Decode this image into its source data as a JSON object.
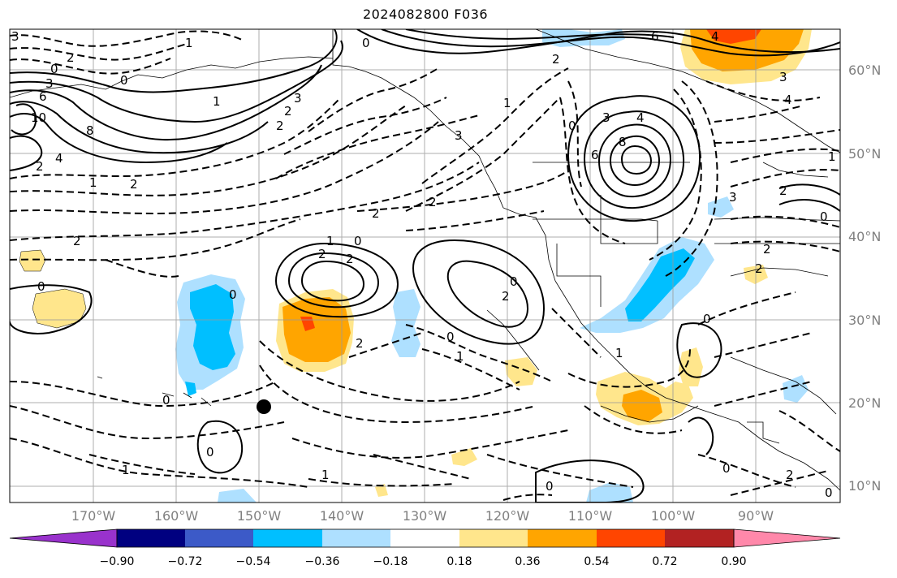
{
  "title": "2024082800 F036",
  "lat_labels": [
    "60°N",
    "50°N",
    "40°N",
    "30°N",
    "20°N",
    "10°N"
  ],
  "lon_labels": [
    "170°W",
    "160°W",
    "150°W",
    "140°W",
    "130°W",
    "120°W",
    "110°W",
    "100°W",
    "90°W"
  ],
  "contour_labels": [
    "3",
    "2",
    "0",
    "1",
    "1",
    "0",
    "2",
    "6",
    "3",
    "4",
    "2",
    "2",
    "3",
    "6",
    "4",
    "8",
    "0",
    "3",
    "0",
    "6",
    "10",
    "8",
    "4",
    "3",
    "1",
    "2",
    "1",
    "2",
    "2",
    "2",
    "2",
    "1",
    "0",
    "2",
    "2",
    "0",
    "0",
    "0",
    "2",
    "0",
    "2",
    "1",
    "0",
    "1",
    "1",
    "0",
    "0",
    "0",
    "0",
    "1",
    "3",
    "2",
    "2",
    "2",
    "0",
    "0",
    "2",
    "3",
    "4",
    "1"
  ],
  "colorbar": {
    "ticks": [
      "−0.90",
      "−0.72",
      "−0.54",
      "−0.36",
      "−0.18",
      "0.18",
      "0.36",
      "0.54",
      "0.72",
      "0.90"
    ],
    "colors": [
      "#9932cc",
      "#000080",
      "#3c5ac8",
      "#00bfff",
      "#aee0ff",
      "#ffffff",
      "#ffe68c",
      "#ffa500",
      "#ff4500",
      "#b22222",
      "#ff88aa"
    ]
  },
  "shading_colors": {
    "light_blue": "#aee0ff",
    "blue": "#00bfff",
    "yellow": "#ffe68c",
    "orange": "#ffa500",
    "red_orange": "#ff4500"
  }
}
